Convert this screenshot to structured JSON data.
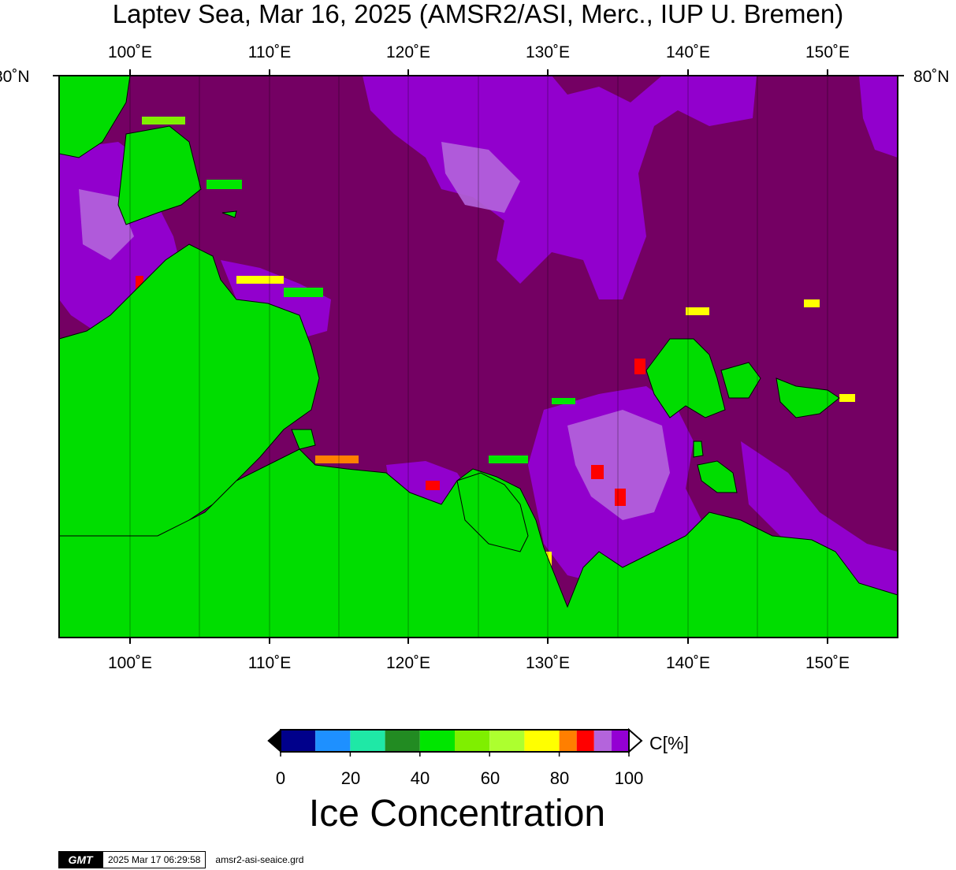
{
  "title": "Laptev Sea, Mar 16, 2025 (AMSR2/ASI, Merc., IUP U. Bremen)",
  "lon_labels": [
    "100˚E",
    "110˚E",
    "120˚E",
    "130˚E",
    "140˚E",
    "150˚E"
  ],
  "lat_label": "80˚N",
  "colorbar": {
    "unit": "C[%]",
    "tick_labels": [
      "0",
      "20",
      "40",
      "60",
      "80",
      "100"
    ],
    "colors": [
      "#00008b",
      "#1e90ff",
      "#1fe8a6",
      "#228b22",
      "#00e600",
      "#7fef00",
      "#adff2f",
      "#ffff00",
      "#ff7f00",
      "#ff0000",
      "#b464dc",
      "#9400d3"
    ],
    "title": "Ice Concentration"
  },
  "map_colors": {
    "sea_full_ice": "#740063",
    "ice_high": "#9400d3",
    "ice_mid": "#b464dc",
    "land": "#00dd00"
  },
  "footer": {
    "logo_text": "GMT",
    "timestamp": "2025 Mar 17 06:29:58",
    "filename": "amsr2-asi-seaice.grd"
  }
}
